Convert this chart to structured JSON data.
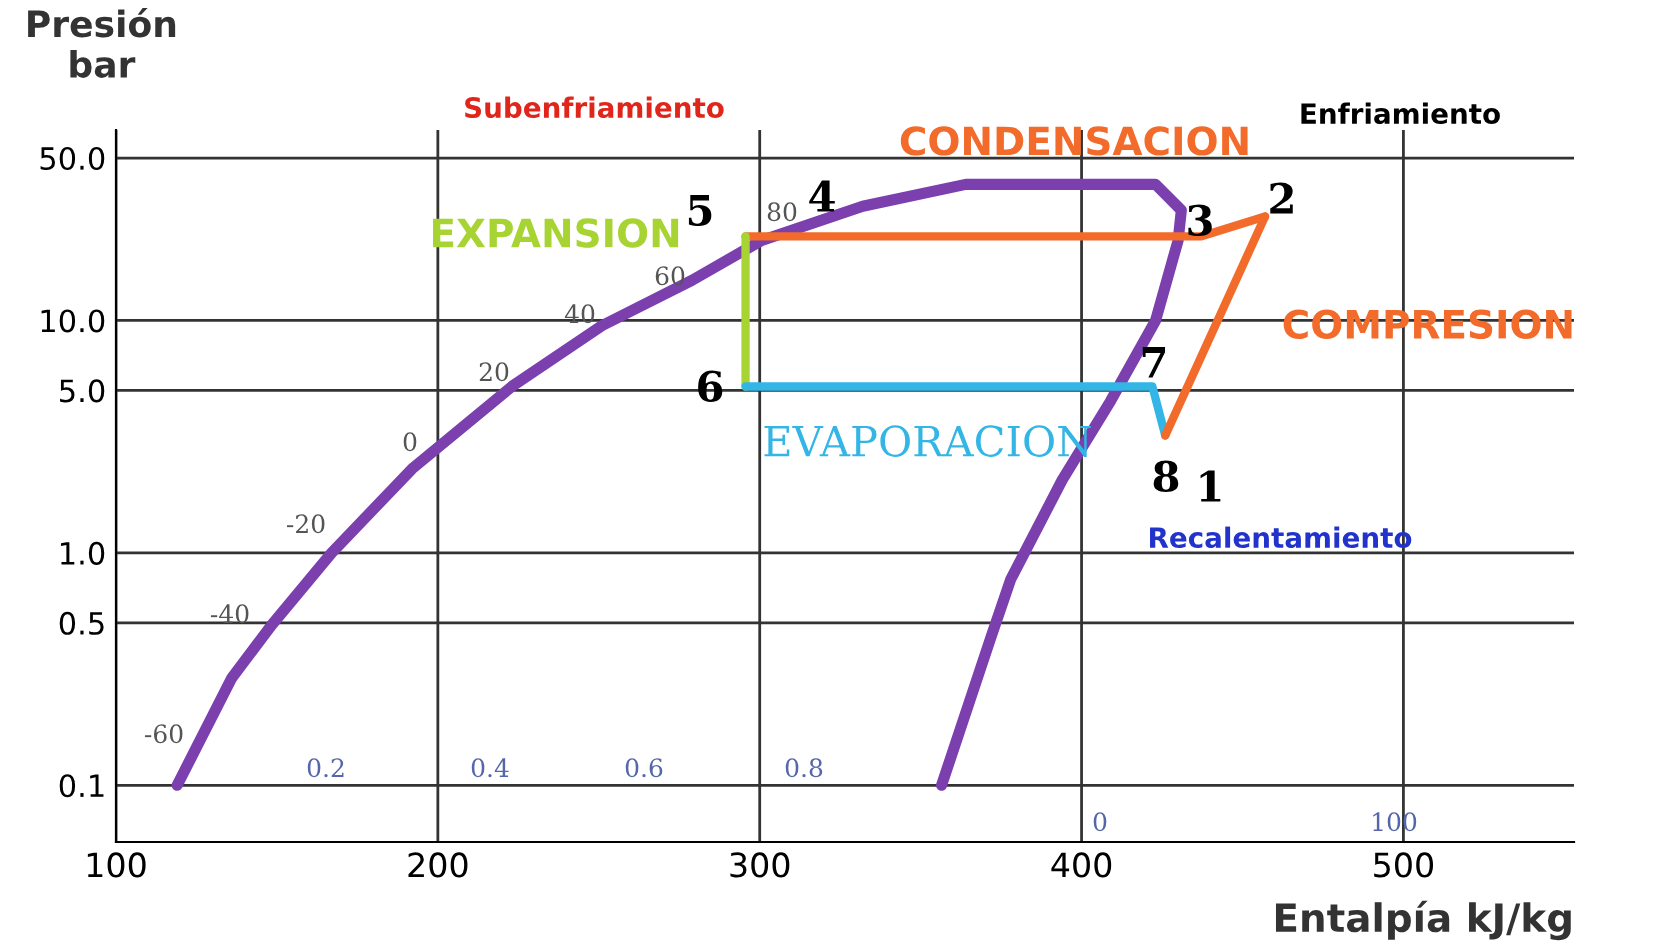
{
  "chart_data": {
    "type": "line",
    "xlabel": "Entalpía kJ/kg",
    "ylabel": "Presión\nbar",
    "xlim": [
      100,
      553
    ],
    "xticks": [
      100,
      200,
      300,
      400,
      500
    ],
    "ylim": [
      0.057,
      66
    ],
    "log": "y",
    "yticks": [
      {
        "value": 0.1,
        "label": "0.1"
      },
      {
        "value": 0.5,
        "label": "0.5"
      },
      {
        "value": 1,
        "label": "1.0"
      },
      {
        "value": 5,
        "label": "5.0"
      },
      {
        "value": 10,
        "label": "10.0"
      },
      {
        "value": 50,
        "label": "50.0"
      }
    ],
    "grid": true,
    "legend": false,
    "marker": "none",
    "line_style": "solid",
    "series": [
      {
        "color": "#7b3fae",
        "x": [
          119,
          136,
          148.4,
          167,
          192,
          223,
          251,
          279,
          300.6,
          332,
          364,
          423,
          431,
          430,
          423,
          409,
          394,
          378,
          372,
          356.5
        ],
        "values": [
          0.1,
          0.29,
          0.49,
          1.0,
          2.3,
          5.2,
          9.5,
          14.9,
          22.1,
          31.0,
          38.5,
          38.5,
          29.8,
          22.1,
          10.0,
          4.5,
          2.06,
          0.77,
          0.44,
          0.1
        ]
      },
      {
        "name": "CONDENSACION",
        "color": "#f26b2a",
        "x": [
          457,
          437,
          295.6
        ],
        "values": [
          28,
          23,
          23
        ]
      },
      {
        "name": "EXPANSION",
        "color": "#a8d433",
        "x": [
          295.6,
          295.6
        ],
        "values": [
          23,
          5.2
        ]
      },
      {
        "name": "EVAPORACION",
        "color": "#33b5e5",
        "x": [
          295.6,
          422,
          426
        ],
        "values": [
          5.2,
          5.2,
          3.2
        ]
      },
      {
        "name": "COMPRESION",
        "color": "#f26b2a",
        "x": [
          426,
          457
        ],
        "values": [
          3.2,
          28
        ]
      }
    ],
    "annotations": [
      "Subenfriamiento",
      "Enfriamiento",
      "Recalentamiento",
      "2",
      "3",
      "4",
      "5",
      "6",
      "7",
      "8",
      "1",
      "-60",
      "-40",
      "-20",
      "0",
      "20",
      "40",
      "60",
      "80",
      "0.2",
      "0.4",
      "0.6",
      "0.8",
      "0",
      "100"
    ]
  }
}
